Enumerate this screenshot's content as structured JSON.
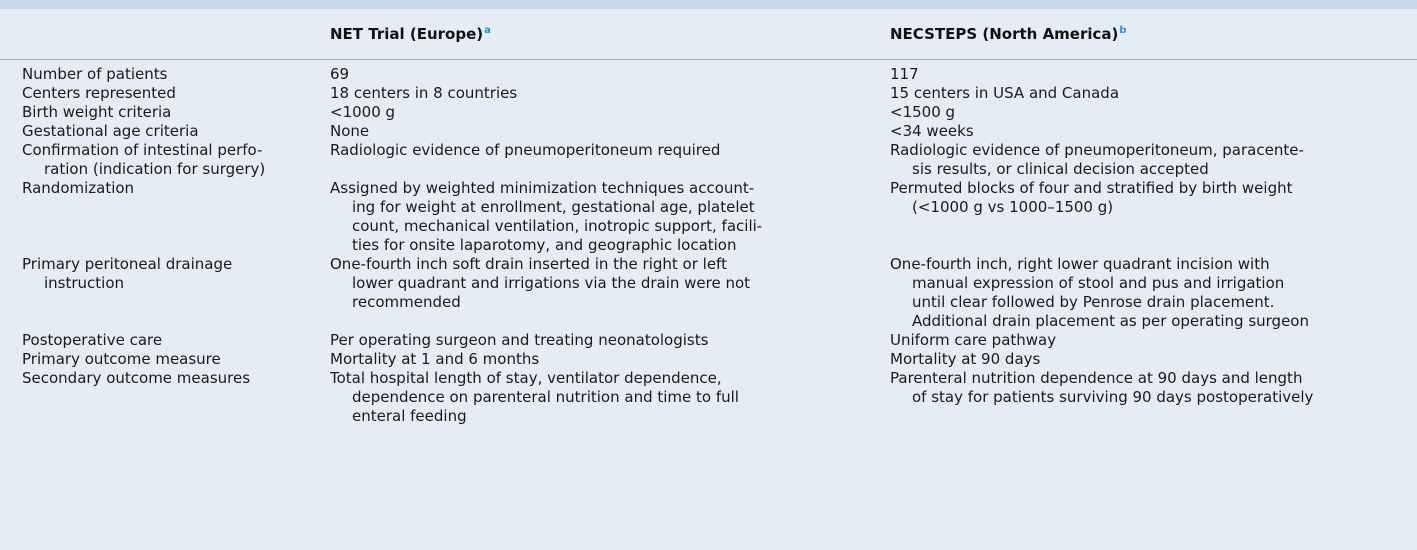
{
  "columns": {
    "net_label": "NET Trial (Europe)",
    "net_note": "a",
    "necsteps_label": "NECSTEPS (North America)",
    "necsteps_note": "b"
  },
  "rows": [
    {
      "criterion": [
        "Number of patients"
      ],
      "net": [
        "69"
      ],
      "necsteps": [
        "117"
      ]
    },
    {
      "criterion": [
        "Centers represented"
      ],
      "net": [
        "18 centers in 8 countries"
      ],
      "necsteps": [
        "15 centers in USA and Canada"
      ]
    },
    {
      "criterion": [
        "Birth weight criteria"
      ],
      "net": [
        "<1000 g"
      ],
      "necsteps": [
        "<1500 g"
      ]
    },
    {
      "criterion": [
        "Gestational age criteria"
      ],
      "net": [
        "None"
      ],
      "necsteps": [
        "<34 weeks"
      ]
    },
    {
      "criterion": [
        "Confirmation of intestinal perfo-",
        "ration (indication for surgery)"
      ],
      "net": [
        "Radiologic evidence of pneumoperitoneum required"
      ],
      "necsteps": [
        "Radiologic evidence of pneumoperitoneum, paracente-",
        "sis results, or clinical decision accepted"
      ]
    },
    {
      "criterion": [
        "Randomization"
      ],
      "net": [
        "Assigned by weighted minimization techniques account-",
        "ing for weight at enrollment, gestational age, platelet",
        "count, mechanical ventilation, inotropic support, facili-",
        "ties for onsite laparotomy, and geographic location"
      ],
      "necsteps": [
        "Permuted blocks of four and stratified by birth weight",
        "(<1000 g vs 1000–1500 g)"
      ]
    },
    {
      "criterion": [
        "Primary peritoneal drainage",
        "instruction"
      ],
      "net": [
        "One-fourth inch soft drain inserted in the right or left",
        "lower quadrant and irrigations via the drain were not",
        "recommended"
      ],
      "necsteps": [
        "One-fourth inch, right lower quadrant incision with",
        "manual expression of stool and pus and irrigation",
        "until clear followed by Penrose drain placement.",
        "Additional drain placement as per operating surgeon"
      ]
    },
    {
      "criterion": [
        "Postoperative care"
      ],
      "net": [
        "Per operating surgeon and treating neonatologists"
      ],
      "necsteps": [
        "Uniform care pathway"
      ]
    },
    {
      "criterion": [
        "Primary outcome measure"
      ],
      "net": [
        "Mortality at 1 and 6 months"
      ],
      "necsteps": [
        "Mortality at 90 days"
      ]
    },
    {
      "criterion": [
        "Secondary outcome measures"
      ],
      "net": [
        "Total hospital length of stay, ventilator dependence,",
        "dependence on parenteral nutrition and time to full",
        "enteral feeding"
      ],
      "necsteps": [
        "Parenteral nutrition dependence at 90 days and length",
        "of stay for patients surviving 90 days postoperatively"
      ]
    }
  ]
}
